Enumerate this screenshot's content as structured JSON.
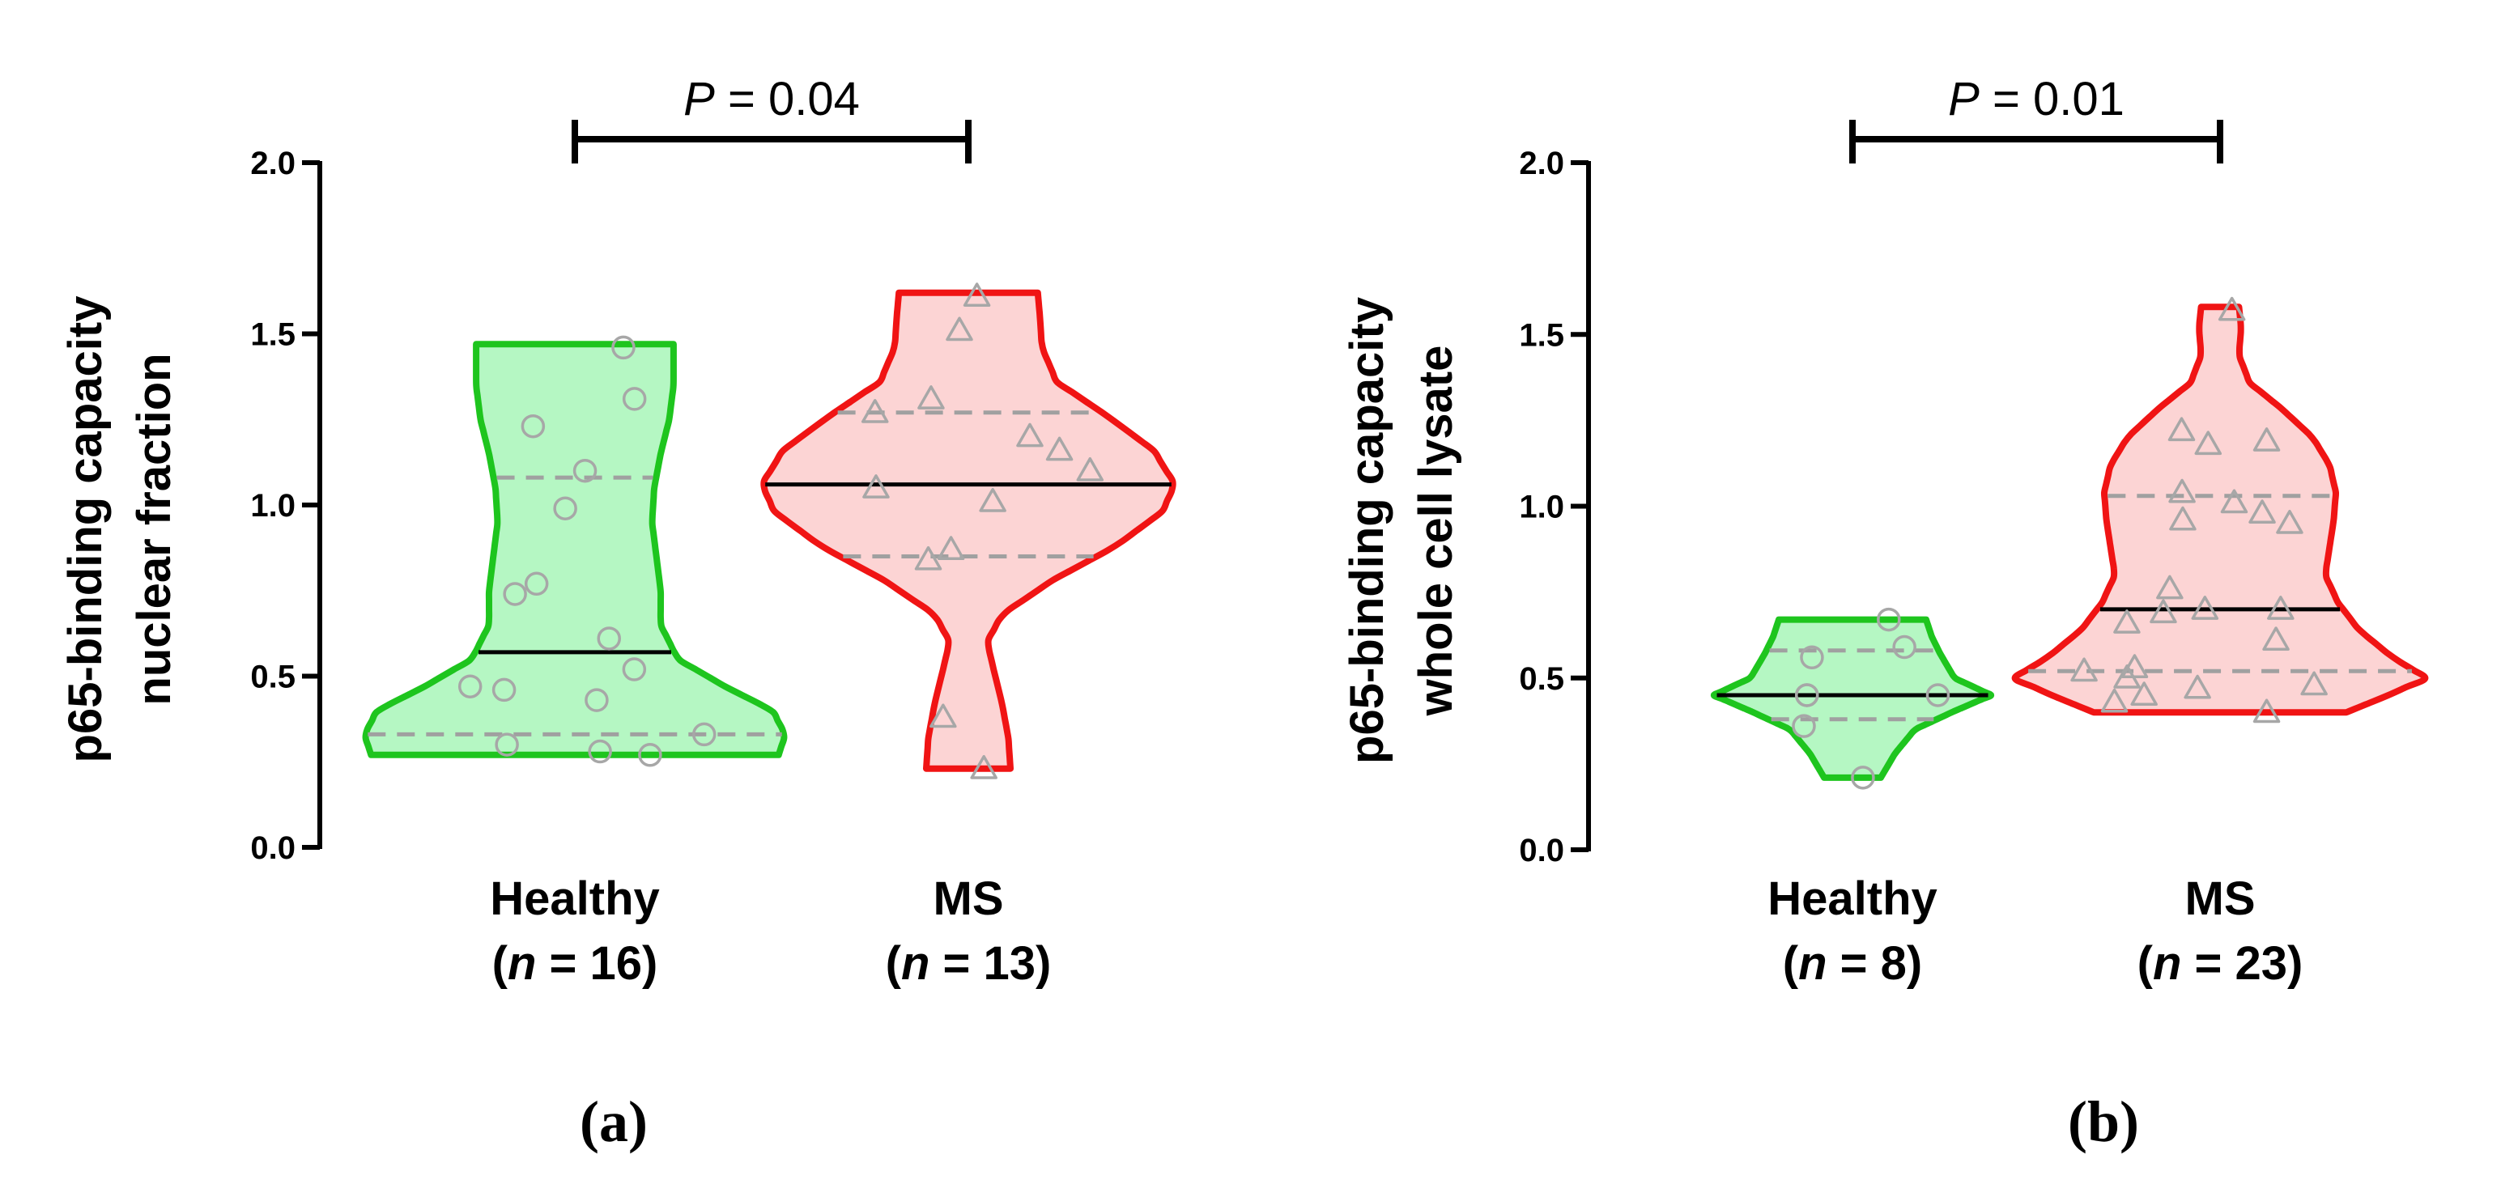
{
  "colors": {
    "healthy_stroke": "#1ec51e",
    "healthy_fill": "#b5f7c3",
    "ms_stroke": "#f01414",
    "ms_fill": "#fcd4d4",
    "point": "#a7a7a7",
    "quartile": "#a0a0a0",
    "median": "#000000"
  },
  "chart_data": [
    {
      "type": "violin",
      "panel_label": "(a)",
      "ylabel_line1": "p65-binding capacity",
      "ylabel_line2": "nuclear fraction",
      "ylim": [
        0,
        2
      ],
      "yticks": [
        "0.0",
        "0.5",
        "1.0",
        "1.5",
        "2.0"
      ],
      "significance": {
        "italic": "P",
        "text": " = 0.04"
      },
      "groups": [
        {
          "name": "Healthy",
          "n_italic": "n",
          "n_text": " = 16",
          "n_open": "(",
          "n_close": ")",
          "min": 0.27,
          "max": 1.47,
          "median": 0.57,
          "q1": 0.33,
          "q3": 1.08,
          "points": [
            0.27,
            0.28,
            0.3,
            0.33,
            0.43,
            0.46,
            0.47,
            0.52,
            0.61,
            0.74,
            0.77,
            0.99,
            1.1,
            1.23,
            1.31,
            1.46
          ],
          "profile": [
            [
              0.27,
              0.95
            ],
            [
              0.33,
              0.98
            ],
            [
              0.4,
              0.92
            ],
            [
              0.47,
              0.7
            ],
            [
              0.55,
              0.48
            ],
            [
              0.65,
              0.4
            ],
            [
              0.75,
              0.4
            ],
            [
              0.85,
              0.38
            ],
            [
              0.95,
              0.36
            ],
            [
              1.05,
              0.37
            ],
            [
              1.15,
              0.4
            ],
            [
              1.25,
              0.44
            ],
            [
              1.35,
              0.46
            ],
            [
              1.47,
              0.46
            ]
          ]
        },
        {
          "name": "MS",
          "n_italic": "n",
          "n_text": " = 13",
          "n_open": "(",
          "n_close": ")",
          "min": 0.23,
          "max": 1.62,
          "median": 1.06,
          "q1": 0.85,
          "q3": 1.27,
          "points": [
            0.23,
            0.38,
            0.84,
            0.87,
            1.01,
            1.05,
            1.1,
            1.16,
            1.2,
            1.27,
            1.31,
            1.51,
            1.61
          ],
          "profile": [
            [
              0.23,
              0.2
            ],
            [
              0.32,
              0.19
            ],
            [
              0.42,
              0.16
            ],
            [
              0.52,
              0.12
            ],
            [
              0.6,
              0.09
            ],
            [
              0.68,
              0.16
            ],
            [
              0.78,
              0.4
            ],
            [
              0.88,
              0.7
            ],
            [
              0.98,
              0.92
            ],
            [
              1.06,
              0.98
            ],
            [
              1.16,
              0.88
            ],
            [
              1.26,
              0.66
            ],
            [
              1.36,
              0.42
            ],
            [
              1.46,
              0.35
            ],
            [
              1.55,
              0.34
            ],
            [
              1.62,
              0.33
            ]
          ]
        }
      ]
    },
    {
      "type": "violin",
      "panel_label": "(b)",
      "ylabel_line1": "p65-binding capacity",
      "ylabel_line2": "whole cell lysate",
      "ylim": [
        0,
        2
      ],
      "yticks": [
        "0.0",
        "0.5",
        "1.0",
        "1.5",
        "2.0"
      ],
      "significance": {
        "italic": "P",
        "text": " = 0.01"
      },
      "groups": [
        {
          "name": "Healthy",
          "n_italic": "n",
          "n_text": " = 8",
          "n_open": "(",
          "n_close": ")",
          "min": 0.21,
          "max": 0.67,
          "median": 0.45,
          "q1": 0.38,
          "q3": 0.58,
          "points": [
            0.21,
            0.36,
            0.45,
            0.45,
            0.45,
            0.56,
            0.59,
            0.67
          ],
          "profile": [
            [
              0.21,
              0.2
            ],
            [
              0.28,
              0.3
            ],
            [
              0.35,
              0.44
            ],
            [
              0.4,
              0.7
            ],
            [
              0.45,
              0.98
            ],
            [
              0.5,
              0.72
            ],
            [
              0.57,
              0.62
            ],
            [
              0.62,
              0.56
            ],
            [
              0.67,
              0.52
            ]
          ]
        },
        {
          "name": "MS",
          "n_italic": "n",
          "n_text": " = 23",
          "n_open": "(",
          "n_close": ")",
          "min": 0.4,
          "max": 1.58,
          "median": 0.7,
          "q1": 0.52,
          "q3": 1.03,
          "points": [
            0.4,
            0.43,
            0.45,
            0.47,
            0.48,
            0.5,
            0.52,
            0.53,
            0.61,
            0.66,
            0.69,
            0.7,
            0.7,
            0.76,
            0.95,
            0.96,
            0.98,
            1.01,
            1.04,
            1.18,
            1.19,
            1.22,
            1.57
          ],
          "profile": [
            [
              0.4,
              0.6
            ],
            [
              0.45,
              0.8
            ],
            [
              0.5,
              0.98
            ],
            [
              0.56,
              0.82
            ],
            [
              0.64,
              0.66
            ],
            [
              0.72,
              0.56
            ],
            [
              0.8,
              0.5
            ],
            [
              0.88,
              0.52
            ],
            [
              0.96,
              0.54
            ],
            [
              1.04,
              0.55
            ],
            [
              1.12,
              0.52
            ],
            [
              1.2,
              0.44
            ],
            [
              1.28,
              0.3
            ],
            [
              1.36,
              0.14
            ],
            [
              1.44,
              0.09
            ],
            [
              1.52,
              0.1
            ],
            [
              1.58,
              0.09
            ]
          ]
        }
      ]
    }
  ]
}
